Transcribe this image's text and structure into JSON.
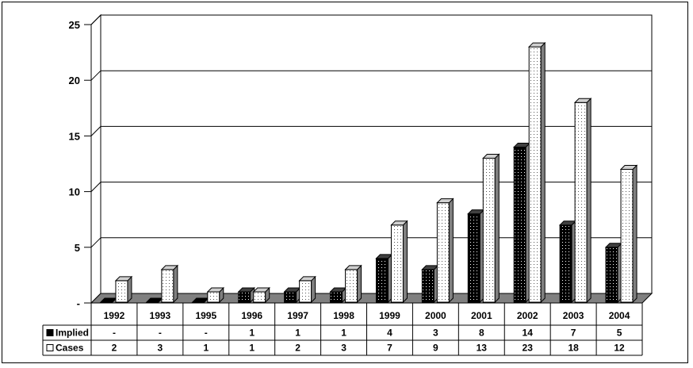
{
  "chart_data": {
    "type": "bar",
    "categories": [
      "1992",
      "1993",
      "1995",
      "1996",
      "1997",
      "1998",
      "1999",
      "2000",
      "2001",
      "2002",
      "2003",
      "2004"
    ],
    "series": [
      {
        "name": "Implied",
        "values": [
          0,
          0,
          0,
          1,
          1,
          1,
          4,
          3,
          8,
          14,
          7,
          5
        ],
        "table_labels": [
          "-",
          "-",
          "-",
          "1",
          "1",
          "1",
          "4",
          "3",
          "8",
          "14",
          "7",
          "5"
        ],
        "color": "#000000"
      },
      {
        "name": "Cases",
        "values": [
          2,
          3,
          1,
          1,
          2,
          3,
          7,
          9,
          13,
          23,
          18,
          12
        ],
        "table_labels": [
          "2",
          "3",
          "1",
          "1",
          "2",
          "3",
          "7",
          "9",
          "13",
          "23",
          "18",
          "12"
        ],
        "color": "#ffffff"
      }
    ],
    "ylim": [
      0,
      25
    ],
    "yticks": [
      0,
      5,
      10,
      15,
      20,
      25
    ],
    "ytick_labels": [
      "-",
      "5",
      "10",
      "15",
      "20",
      "25"
    ],
    "grid": true,
    "legend": "data-table",
    "style": "3d-clustered-bar-with-data-table"
  }
}
